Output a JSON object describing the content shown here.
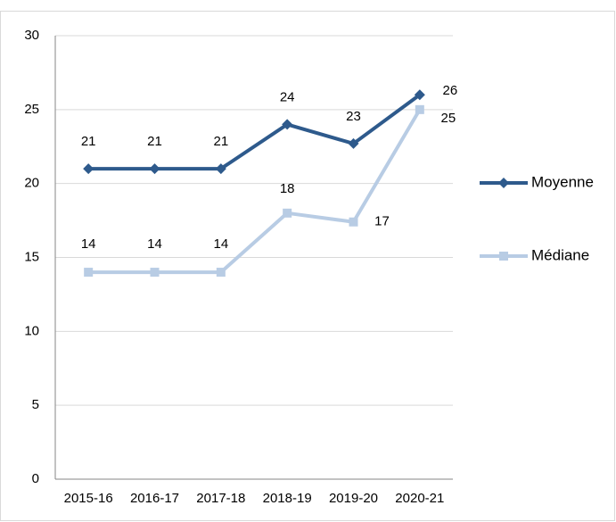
{
  "chart_data": {
    "type": "line",
    "categories": [
      "2015-16",
      "2016-17",
      "2017-18",
      "2018-19",
      "2019-20",
      "2020-21"
    ],
    "series": [
      {
        "name": "Moyenne",
        "color": "#2e5a8c",
        "marker": "diamond",
        "values": [
          21,
          21,
          21,
          24,
          22.7,
          26
        ],
        "value_labels": [
          "21",
          "21",
          "21",
          "24",
          "23",
          "26"
        ]
      },
      {
        "name": "Médiane",
        "color": "#b8cce4",
        "marker": "square",
        "values": [
          14,
          14,
          14,
          18,
          17.4,
          25
        ],
        "value_labels": [
          "14",
          "14",
          "14",
          "18",
          "17",
          "25"
        ]
      }
    ],
    "ylim": [
      0,
      30
    ],
    "yticks": [
      0,
      5,
      10,
      15,
      20,
      25,
      30
    ],
    "grid": true,
    "legend": "right"
  }
}
